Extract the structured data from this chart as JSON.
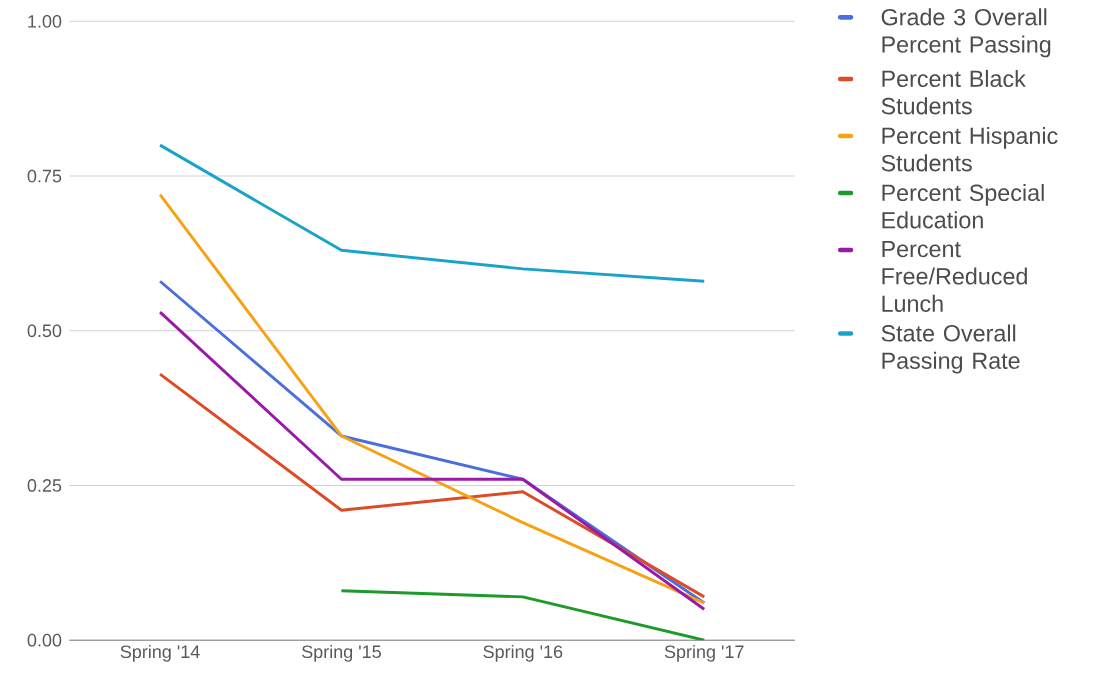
{
  "chart_data": {
    "type": "line",
    "categories": [
      "Spring '14",
      "Spring '15",
      "Spring '16",
      "Spring '17"
    ],
    "series": [
      {
        "name": "Grade 3 Overall Percent Passing",
        "color": "#4a6fdb",
        "values": [
          0.58,
          0.33,
          0.26,
          0.06
        ]
      },
      {
        "name": "Percent Black Students",
        "color": "#db4b26",
        "values": [
          0.43,
          0.21,
          0.24,
          0.07
        ]
      },
      {
        "name": "Percent Hispanic Students",
        "color": "#f5a214",
        "values": [
          0.72,
          0.33,
          0.19,
          0.06
        ]
      },
      {
        "name": "Percent Special Education",
        "color": "#1e9a2c",
        "values": [
          null,
          0.08,
          0.07,
          0.0
        ]
      },
      {
        "name": "Percent Free/Reduced Lunch",
        "color": "#9a1aa8",
        "values": [
          0.53,
          0.26,
          0.26,
          0.05
        ]
      },
      {
        "name": "State Overall Passing Rate",
        "color": "#1aa3c9",
        "values": [
          0.8,
          0.63,
          0.6,
          0.58
        ]
      }
    ],
    "ylim": [
      0,
      1
    ],
    "yticks": [
      {
        "value": 0,
        "label": "0.00"
      },
      {
        "value": 0.25,
        "label": "0.25"
      },
      {
        "value": 0.5,
        "label": "0.50"
      },
      {
        "value": 0.75,
        "label": "0.75"
      },
      {
        "value": 1,
        "label": "1.00"
      }
    ],
    "grid": "y",
    "legend": "right",
    "marker": "none",
    "line_style": "solid"
  }
}
